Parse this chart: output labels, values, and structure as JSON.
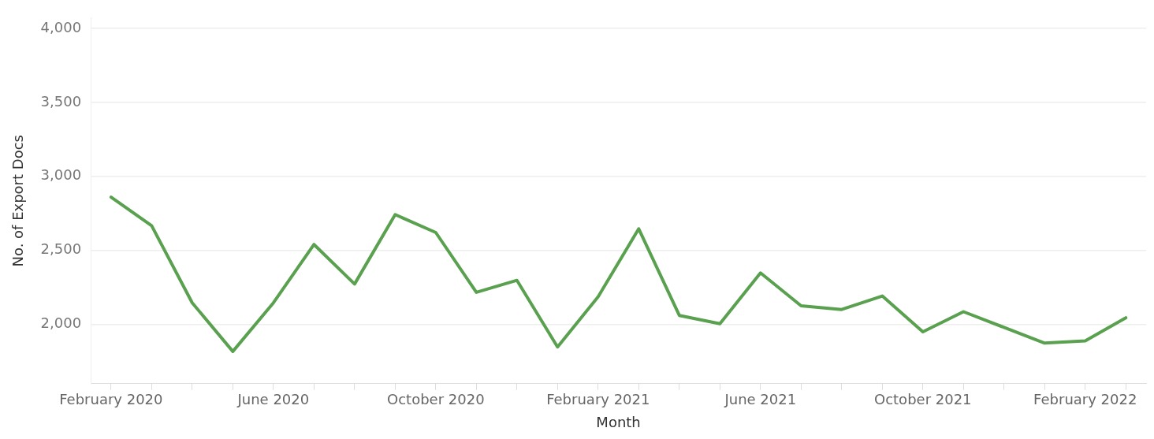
{
  "chart_data": {
    "type": "line",
    "xlabel": "Month",
    "ylabel": "No. of Export Docs",
    "categories": [
      "February 2020",
      null,
      null,
      null,
      "June 2020",
      null,
      null,
      null,
      "October 2020",
      null,
      null,
      null,
      "February 2021",
      null,
      null,
      null,
      "June 2021",
      null,
      null,
      null,
      "October 2021",
      null,
      null,
      null,
      "February 2022",
      null
    ],
    "series": [
      {
        "color": "#59a14f",
        "values": [
          2860,
          2667,
          2146,
          1818,
          2146,
          2540,
          2273,
          2742,
          2621,
          2217,
          2298,
          1848,
          2187,
          2646,
          2061,
          2005,
          2348,
          2126,
          2101,
          2192,
          1950,
          2086,
          1980,
          1874,
          1889,
          2045
        ]
      }
    ],
    "ylim": [
      1600,
      4070
    ],
    "yticks": [
      {
        "value": 2000,
        "label": "2,000"
      },
      {
        "value": 2500,
        "label": "2,500"
      },
      {
        "value": 3000,
        "label": "3,000"
      },
      {
        "value": 3500,
        "label": "3,500"
      },
      {
        "value": 4000,
        "label": "4,000"
      }
    ],
    "grid": "y",
    "legend": false,
    "marker": "none",
    "line_style": "solid"
  }
}
